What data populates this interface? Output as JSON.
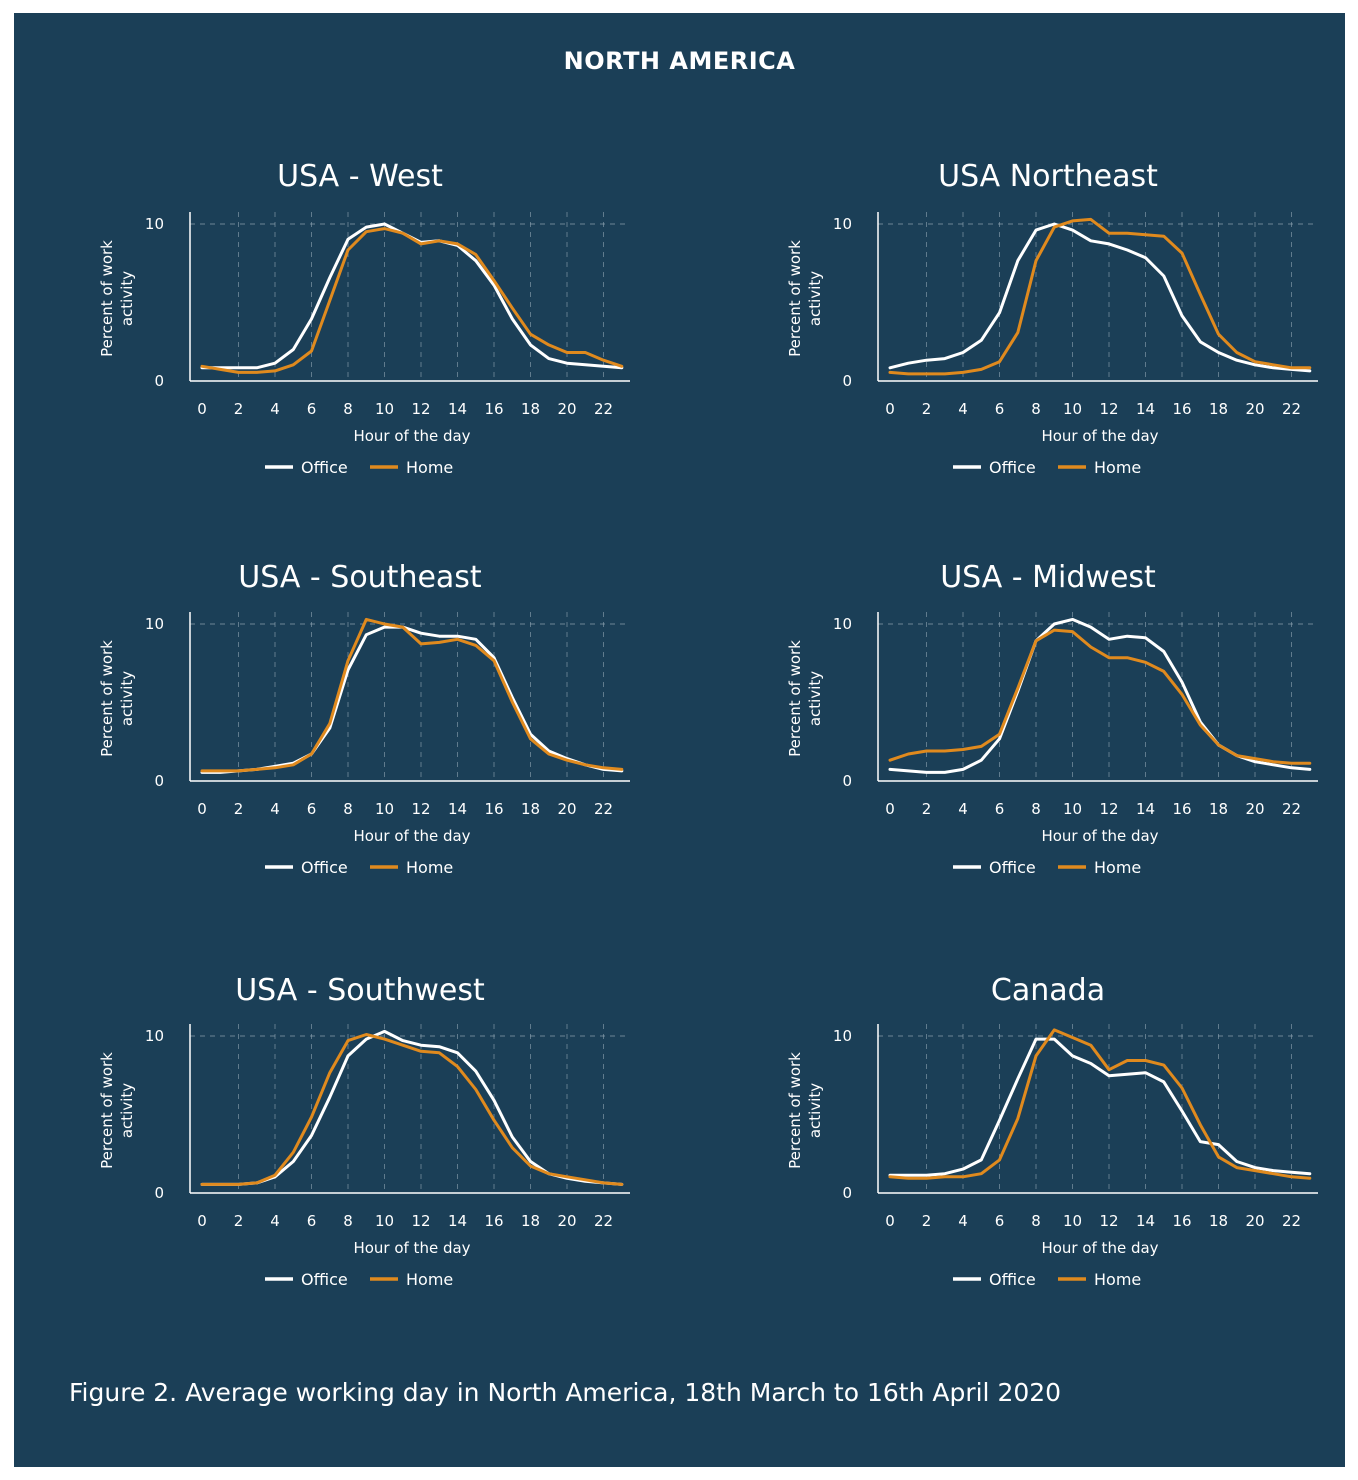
{
  "header": {
    "title": "NORTH AMERICA"
  },
  "caption": "Figure 2. Average working day in North America,  18th March to 16th April 2020",
  "colors": {
    "background": "#1b3f57",
    "office": "#ffffff",
    "home": "#e08a1e",
    "grid": "#8fa3b1"
  },
  "chart_data": [
    {
      "type": "line",
      "title": "USA - West",
      "xlabel": "Hour of the day",
      "ylabel": "Percent of work activity",
      "x": [
        0,
        1,
        2,
        3,
        4,
        5,
        6,
        7,
        8,
        9,
        10,
        11,
        12,
        13,
        14,
        15,
        16,
        17,
        18,
        19,
        20,
        21,
        22,
        23
      ],
      "x_ticks": [
        "0",
        "2",
        "4",
        "6",
        "8",
        "10",
        "12",
        "14",
        "16",
        "18",
        "20",
        "22"
      ],
      "y_ticks": [
        "0",
        "10"
      ],
      "ylim": [
        0,
        10.3
      ],
      "grid": true,
      "legend": "bottom",
      "series": [
        {
          "name": "Office",
          "values": [
            0.6,
            0.6,
            0.6,
            0.6,
            0.9,
            1.8,
            3.8,
            6.5,
            9.0,
            9.8,
            10.0,
            9.4,
            8.8,
            8.9,
            8.6,
            7.6,
            6.0,
            3.8,
            2.1,
            1.2,
            0.9,
            0.8,
            0.7,
            0.6
          ]
        },
        {
          "name": "Home",
          "values": [
            0.7,
            0.5,
            0.3,
            0.3,
            0.4,
            0.8,
            1.7,
            5.0,
            8.3,
            9.5,
            9.7,
            9.4,
            8.7,
            8.9,
            8.7,
            8.0,
            6.3,
            4.5,
            2.8,
            2.1,
            1.6,
            1.6,
            1.1,
            0.7
          ]
        }
      ]
    },
    {
      "type": "line",
      "title": "USA Northeast",
      "xlabel": "Hour of the day",
      "ylabel": "Percent of work activity",
      "x": [
        0,
        1,
        2,
        3,
        4,
        5,
        6,
        7,
        8,
        9,
        10,
        11,
        12,
        13,
        14,
        15,
        16,
        17,
        18,
        19,
        20,
        21,
        22,
        23
      ],
      "x_ticks": [
        "0",
        "2",
        "4",
        "6",
        "8",
        "10",
        "12",
        "14",
        "16",
        "18",
        "20",
        "22"
      ],
      "y_ticks": [
        "0",
        "10"
      ],
      "ylim": [
        0,
        10.3
      ],
      "grid": true,
      "legend": "bottom",
      "series": [
        {
          "name": "Office",
          "values": [
            0.6,
            0.9,
            1.1,
            1.2,
            1.6,
            2.4,
            4.2,
            7.6,
            9.6,
            10.0,
            9.6,
            8.9,
            8.7,
            8.3,
            7.8,
            6.6,
            4.0,
            2.3,
            1.6,
            1.1,
            0.8,
            0.6,
            0.5,
            0.4
          ]
        },
        {
          "name": "Home",
          "values": [
            0.3,
            0.2,
            0.2,
            0.2,
            0.3,
            0.5,
            1.0,
            2.9,
            7.6,
            9.8,
            10.2,
            10.3,
            9.4,
            9.4,
            9.3,
            9.2,
            8.1,
            5.4,
            2.8,
            1.6,
            1.0,
            0.8,
            0.6,
            0.6
          ]
        }
      ]
    },
    {
      "type": "line",
      "title": "USA - Southeast",
      "xlabel": "Hour of the day",
      "ylabel": "Percent of work activity",
      "x": [
        0,
        1,
        2,
        3,
        4,
        5,
        6,
        7,
        8,
        9,
        10,
        11,
        12,
        13,
        14,
        15,
        16,
        17,
        18,
        19,
        20,
        21,
        22,
        23
      ],
      "x_ticks": [
        "0",
        "2",
        "4",
        "6",
        "8",
        "10",
        "12",
        "14",
        "16",
        "18",
        "20",
        "22"
      ],
      "y_ticks": [
        "0",
        "10"
      ],
      "ylim": [
        0,
        10.3
      ],
      "grid": true,
      "legend": "bottom",
      "series": [
        {
          "name": "Office",
          "values": [
            0.3,
            0.3,
            0.4,
            0.5,
            0.7,
            0.9,
            1.5,
            3.2,
            7.0,
            9.3,
            9.8,
            9.8,
            9.4,
            9.2,
            9.2,
            9.0,
            7.8,
            5.2,
            2.8,
            1.7,
            1.2,
            0.8,
            0.5,
            0.4
          ]
        },
        {
          "name": "Home",
          "values": [
            0.4,
            0.4,
            0.4,
            0.5,
            0.6,
            0.8,
            1.5,
            3.5,
            7.6,
            10.3,
            10.0,
            9.8,
            8.7,
            8.8,
            9.0,
            8.6,
            7.6,
            4.9,
            2.5,
            1.5,
            1.1,
            0.8,
            0.6,
            0.5
          ]
        }
      ]
    },
    {
      "type": "line",
      "title": "USA - Midwest",
      "xlabel": "Hour of the day",
      "ylabel": "Percent of work activity",
      "x": [
        0,
        1,
        2,
        3,
        4,
        5,
        6,
        7,
        8,
        9,
        10,
        11,
        12,
        13,
        14,
        15,
        16,
        17,
        18,
        19,
        20,
        21,
        22,
        23
      ],
      "x_ticks": [
        "0",
        "2",
        "4",
        "6",
        "8",
        "10",
        "12",
        "14",
        "16",
        "18",
        "20",
        "22"
      ],
      "y_ticks": [
        "0",
        "10"
      ],
      "ylim": [
        0,
        10.3
      ],
      "grid": true,
      "legend": "bottom",
      "series": [
        {
          "name": "Office",
          "values": [
            0.5,
            0.4,
            0.3,
            0.3,
            0.5,
            1.1,
            2.5,
            5.6,
            8.9,
            10.0,
            10.3,
            9.8,
            9.0,
            9.2,
            9.1,
            8.2,
            6.2,
            3.6,
            2.1,
            1.4,
            1.0,
            0.8,
            0.6,
            0.5
          ]
        },
        {
          "name": "Home",
          "values": [
            1.1,
            1.5,
            1.7,
            1.7,
            1.8,
            2.0,
            2.8,
            5.8,
            8.9,
            9.6,
            9.5,
            8.5,
            7.8,
            7.8,
            7.5,
            6.9,
            5.4,
            3.4,
            2.1,
            1.4,
            1.2,
            1.0,
            0.9,
            0.9
          ]
        }
      ]
    },
    {
      "type": "line",
      "title": "USA - Southwest",
      "xlabel": "Hour of the day",
      "ylabel": "Percent of work activity",
      "x": [
        0,
        1,
        2,
        3,
        4,
        5,
        6,
        7,
        8,
        9,
        10,
        11,
        12,
        13,
        14,
        15,
        16,
        17,
        18,
        19,
        20,
        21,
        22,
        23
      ],
      "x_ticks": [
        "0",
        "2",
        "4",
        "6",
        "8",
        "10",
        "12",
        "14",
        "16",
        "18",
        "20",
        "22"
      ],
      "y_ticks": [
        "0",
        "10"
      ],
      "ylim": [
        0,
        10.3
      ],
      "grid": true,
      "legend": "bottom",
      "series": [
        {
          "name": "Office",
          "values": [
            0.3,
            0.3,
            0.3,
            0.4,
            0.8,
            1.8,
            3.5,
            6.0,
            8.7,
            9.8,
            10.3,
            9.7,
            9.4,
            9.3,
            8.9,
            7.7,
            5.8,
            3.4,
            1.8,
            1.0,
            0.7,
            0.5,
            0.4,
            0.3
          ]
        },
        {
          "name": "Home",
          "values": [
            0.3,
            0.3,
            0.3,
            0.4,
            0.9,
            2.4,
            4.7,
            7.6,
            9.7,
            10.1,
            9.8,
            9.4,
            9.0,
            8.9,
            8.0,
            6.5,
            4.5,
            2.7,
            1.5,
            1.0,
            0.8,
            0.6,
            0.4,
            0.3
          ]
        }
      ]
    },
    {
      "type": "line",
      "title": "Canada",
      "xlabel": "Hour of the day",
      "ylabel": "Percent of work activity",
      "x": [
        0,
        1,
        2,
        3,
        4,
        5,
        6,
        7,
        8,
        9,
        10,
        11,
        12,
        13,
        14,
        15,
        16,
        17,
        18,
        19,
        20,
        21,
        22,
        23
      ],
      "x_ticks": [
        "0",
        "2",
        "4",
        "6",
        "8",
        "10",
        "12",
        "14",
        "16",
        "18",
        "20",
        "22"
      ],
      "y_ticks": [
        "0",
        "10"
      ],
      "ylim": [
        0,
        10.3
      ],
      "grid": true,
      "legend": "bottom",
      "series": [
        {
          "name": "Office",
          "values": [
            0.9,
            0.9,
            0.9,
            1.0,
            1.3,
            1.9,
            4.5,
            7.2,
            9.8,
            9.8,
            8.7,
            8.2,
            7.4,
            7.5,
            7.6,
            7.0,
            5.1,
            3.1,
            2.9,
            1.8,
            1.4,
            1.2,
            1.1,
            1.0
          ]
        },
        {
          "name": "Home",
          "values": [
            0.8,
            0.7,
            0.7,
            0.8,
            0.8,
            1.0,
            1.9,
            4.6,
            8.7,
            10.4,
            9.9,
            9.4,
            7.8,
            8.4,
            8.4,
            8.1,
            6.6,
            4.2,
            2.1,
            1.4,
            1.2,
            1.0,
            0.8,
            0.7
          ]
        }
      ]
    }
  ]
}
